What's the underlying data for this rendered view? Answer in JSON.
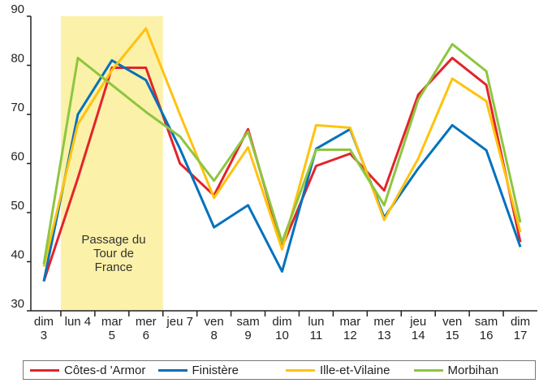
{
  "chart_data": {
    "type": "line",
    "annotation": "Passage du Tour de France",
    "categories": [
      "dim 3",
      "lun 4",
      "mar 5",
      "mer 6",
      "jeu 7",
      "ven 8",
      "sam 9",
      "dim 10",
      "lun 11",
      "mar 12",
      "mer 13",
      "jeu 14",
      "ven 15",
      "sam 16",
      "dim 17"
    ],
    "series": [
      {
        "name": "Côtes-d 'Armor",
        "color": "#e3242b",
        "values": [
          36,
          57,
          79.5,
          79.5,
          60,
          53.5,
          67,
          43,
          59.5,
          62,
          54.5,
          74,
          81.5,
          76,
          44
        ]
      },
      {
        "name": "Finistère",
        "color": "#0072bc",
        "values": [
          36,
          70,
          81,
          77,
          63,
          47,
          51.5,
          38,
          63,
          67,
          49,
          59,
          67.8,
          62.7,
          43
        ]
      },
      {
        "name": "Ille-et-Vilaine",
        "color": "#ffc20e",
        "values": [
          39,
          68,
          79,
          87.5,
          70,
          53,
          63.3,
          42.5,
          67.8,
          67.3,
          48.5,
          61,
          77.3,
          72.7,
          46
        ]
      },
      {
        "name": "Morbihan",
        "color": "#8dc63f",
        "values": [
          39.5,
          81.5,
          76,
          70.5,
          65.5,
          56.5,
          66.5,
          44,
          62.8,
          62.8,
          51.5,
          73,
          84.3,
          78.8,
          48
        ]
      }
    ],
    "ylim": [
      30,
      90
    ],
    "yticks": [
      30,
      40,
      50,
      60,
      70,
      80,
      90
    ],
    "grid": false
  }
}
